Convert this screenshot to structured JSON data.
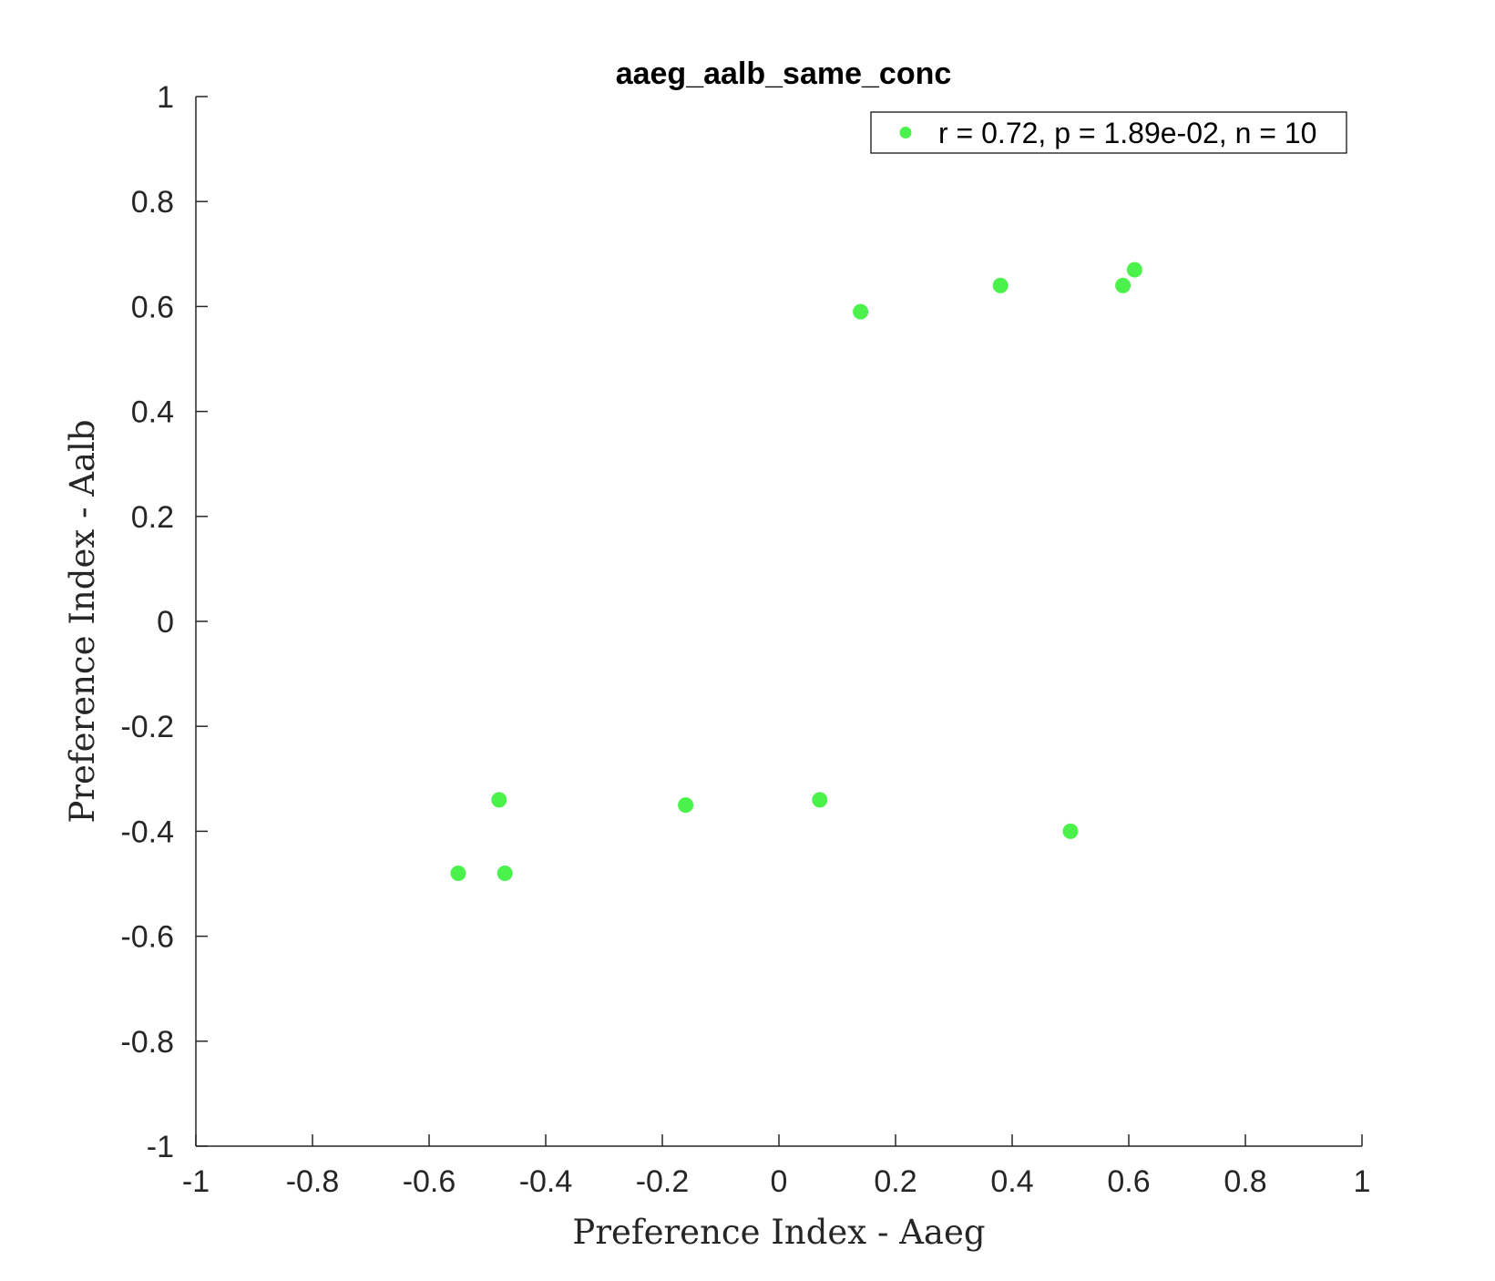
{
  "chart_data": {
    "type": "scatter",
    "title": "aaeg_aalb_same_conc",
    "xlabel": "Preference Index - Aaeg",
    "ylabel": "Preference Index - Aalb",
    "xlim": [
      -1,
      1
    ],
    "ylim": [
      -1,
      1
    ],
    "xticks": [
      -1,
      -0.8,
      -0.6,
      -0.4,
      -0.2,
      0,
      0.2,
      0.4,
      0.6,
      0.8,
      1
    ],
    "yticks": [
      -1,
      -0.8,
      -0.6,
      -0.4,
      -0.2,
      0,
      0.2,
      0.4,
      0.6,
      0.8,
      1
    ],
    "xtick_labels": [
      "-1",
      "-0.8",
      "-0.6",
      "-0.4",
      "-0.2",
      "0",
      "0.2",
      "0.4",
      "0.6",
      "0.8",
      "1"
    ],
    "ytick_labels": [
      "-1",
      "-0.8",
      "-0.6",
      "-0.4",
      "-0.2",
      "0",
      "0.2",
      "0.4",
      "0.6",
      "0.8",
      "1"
    ],
    "grid": false,
    "legend_position": "top-right",
    "series": [
      {
        "name": "r = 0.72, p = 1.89e-02, n = 10",
        "color": "#4cf24c",
        "x": [
          -0.55,
          -0.48,
          -0.47,
          -0.16,
          0.07,
          0.14,
          0.38,
          0.5,
          0.59,
          0.61
        ],
        "y": [
          -0.48,
          -0.34,
          -0.48,
          -0.35,
          -0.34,
          0.59,
          0.64,
          -0.4,
          0.64,
          0.67
        ]
      }
    ]
  }
}
